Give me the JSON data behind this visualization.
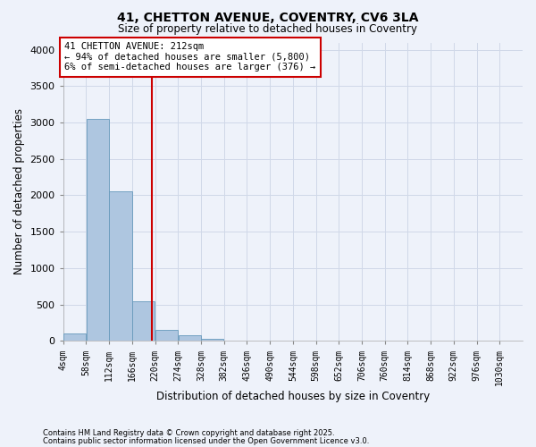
{
  "title_line1": "41, CHETTON AVENUE, COVENTRY, CV6 3LA",
  "title_line2": "Size of property relative to detached houses in Coventry",
  "xlabel": "Distribution of detached houses by size in Coventry",
  "ylabel": "Number of detached properties",
  "annotation_title": "41 CHETTON AVENUE: 212sqm",
  "annotation_line2": "← 94% of detached houses are smaller (5,800)",
  "annotation_line3": "6% of semi-detached houses are larger (376) →",
  "property_line_x": 212,
  "bins": [
    4,
    58,
    112,
    166,
    220,
    274,
    328,
    382,
    436,
    490,
    544,
    598,
    652,
    706,
    760,
    814,
    868,
    922,
    976,
    1030,
    1084
  ],
  "bar_values": [
    100,
    3050,
    2050,
    550,
    150,
    75,
    25,
    8,
    2,
    1,
    0,
    0,
    0,
    0,
    0,
    0,
    0,
    0,
    0,
    0
  ],
  "bar_color": "#aec6e0",
  "bar_edge_color": "#6699bb",
  "line_color": "#cc0000",
  "background_color": "#eef2fa",
  "grid_color": "#d0d8e8",
  "ylim": [
    0,
    4100
  ],
  "yticks": [
    0,
    500,
    1000,
    1500,
    2000,
    2500,
    3000,
    3500,
    4000
  ],
  "annotation_box_color": "#ffffff",
  "annotation_border_color": "#cc0000",
  "footnote_line1": "Contains HM Land Registry data © Crown copyright and database right 2025.",
  "footnote_line2": "Contains public sector information licensed under the Open Government Licence v3.0."
}
